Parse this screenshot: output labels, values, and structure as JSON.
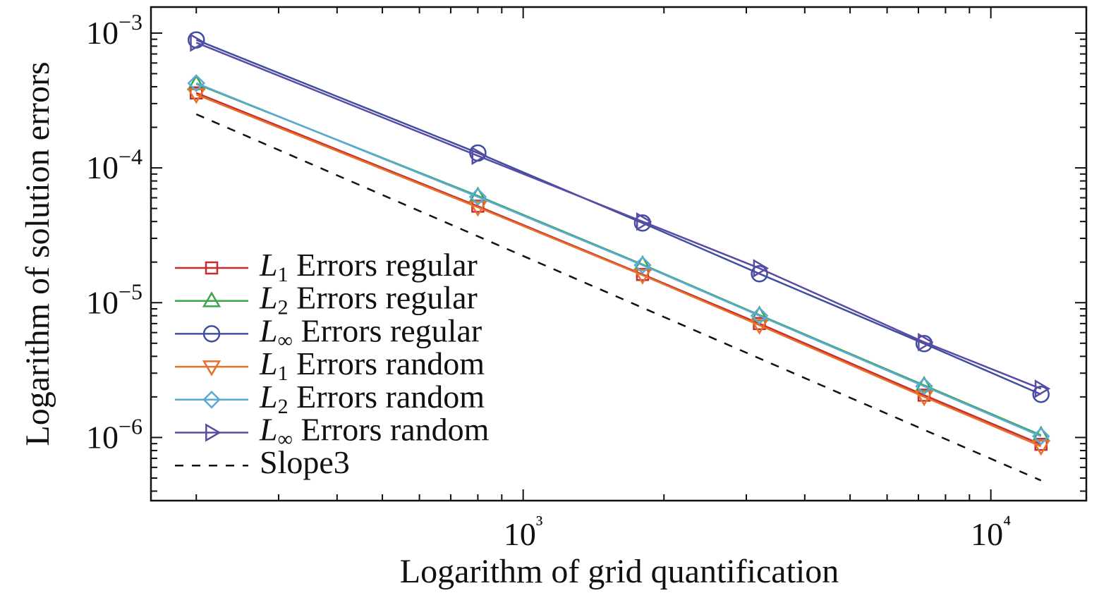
{
  "chart_data": {
    "type": "line",
    "x_label": "Logarithm of grid quantification",
    "y_label": "Logarithm of solution errors",
    "xscale": "log",
    "yscale": "log",
    "xlim": [
      160,
      16000
    ],
    "ylim": [
      3.4e-07,
      0.00156
    ],
    "xticks": [
      {
        "value": 1000,
        "label": "10³"
      },
      {
        "value": 10000,
        "label": "10⁴"
      }
    ],
    "yticks": [
      {
        "value": 1e-06,
        "label": "10−6"
      },
      {
        "value": 1e-05,
        "label": "10−5"
      },
      {
        "value": 0.0001,
        "label": "10−4"
      },
      {
        "value": 0.001,
        "label": "10−3"
      }
    ],
    "x_minor_ticks": [
      200,
      300,
      400,
      500,
      600,
      700,
      800,
      900,
      2000,
      3000,
      4000,
      5000,
      6000,
      7000,
      8000,
      9000
    ],
    "y_minor_ticks": [
      4e-07,
      5e-07,
      6e-07,
      7e-07,
      8e-07,
      9e-07,
      2e-06,
      3e-06,
      4e-06,
      5e-06,
      6e-06,
      7e-06,
      8e-06,
      9e-06,
      2e-05,
      3e-05,
      4e-05,
      5e-05,
      6e-05,
      7e-05,
      8e-05,
      9e-05,
      0.0002,
      0.0003,
      0.0004,
      0.0005,
      0.0006,
      0.0007,
      0.0008,
      0.0009
    ],
    "legend": "lower left",
    "x": [
      200,
      800,
      1800,
      3200,
      7200,
      12800
    ],
    "series": [
      {
        "name": "L1 Errors regular",
        "color": "#c62d2d",
        "marker": "square",
        "values": [
          0.00036,
          5.2e-05,
          1.62e-05,
          7e-06,
          2.06e-06,
          8.9e-07
        ]
      },
      {
        "name": "L2 Errors regular",
        "color": "#3aa64a",
        "marker": "triangle-up",
        "values": [
          0.00042,
          6.2e-05,
          1.92e-05,
          8.1e-06,
          2.44e-06,
          1.04e-06
        ]
      },
      {
        "name": "L∞ Errors regular",
        "color": "#3f4fa0",
        "marker": "circle",
        "values": [
          0.00089,
          0.000129,
          3.9e-05,
          1.64e-05,
          4.97e-06,
          2.09e-06
        ]
      },
      {
        "name": "L1 Errors random",
        "color": "#e8702a",
        "marker": "triangle-down",
        "values": [
          0.00035,
          5.1e-05,
          1.6e-05,
          6.8e-06,
          2e-06,
          8.6e-07
        ]
      },
      {
        "name": "L2 Errors random",
        "color": "#5aa9d6",
        "marker": "diamond",
        "values": [
          0.000425,
          6.1e-05,
          1.9e-05,
          8e-06,
          2.4e-06,
          1.02e-06
        ]
      },
      {
        "name": "L∞ Errors random",
        "color": "#5b4ba6",
        "marker": "triangle-right",
        "values": [
          0.00085,
          0.000123,
          4e-05,
          1.8e-05,
          5.1e-06,
          2.3e-06
        ]
      },
      {
        "name": "Slope3",
        "color": "#111111",
        "dashed": true,
        "x": [
          200,
          12800
        ],
        "values": [
          0.00025,
          4.8e-07
        ]
      }
    ]
  }
}
